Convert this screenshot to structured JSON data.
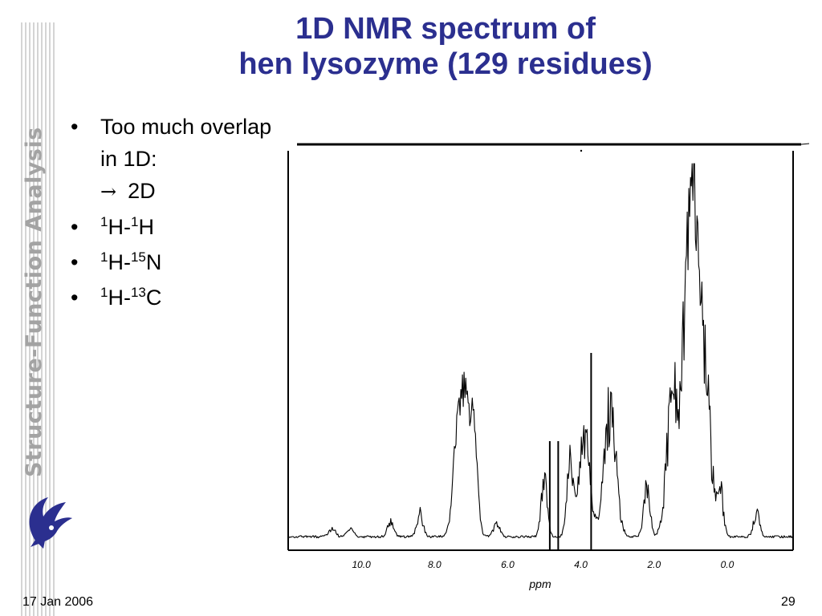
{
  "slide": {
    "title_line1": "1D NMR spectrum of",
    "title_line2": "hen lysozyme (129 residues)",
    "sidebar_title": "Structure-Function Analysis",
    "bullets": [
      {
        "text": "Too much overlap in 1D:",
        "arrow": "→",
        "tail": "2D"
      },
      {
        "a": "1",
        "b": "H-",
        "c": "1",
        "d": "H"
      },
      {
        "a": "1",
        "b": "H-",
        "c": "15",
        "d": "N"
      },
      {
        "a": "1",
        "b": "H-",
        "c": "13",
        "d": "C"
      }
    ],
    "bullet_symbol": "•",
    "footer_date": "17 Jan 2006",
    "page_number": "29",
    "logo_icon": "griffin-logo-icon"
  },
  "chart_data": {
    "type": "line",
    "xlabel": "ppm",
    "x_reversed": true,
    "xlim": [
      12.0,
      -1.8
    ],
    "ylim": [
      0,
      1
    ],
    "tick_labels": [
      "10.0",
      "8.0",
      "6.0",
      "4.0",
      "2.0",
      "0.0"
    ],
    "tick_values": [
      10,
      8,
      6,
      4,
      2,
      0
    ],
    "colors": {
      "line": "#000000",
      "title": "#2b2f8f"
    },
    "features": [
      {
        "ppm": 10.8,
        "height": 0.03
      },
      {
        "ppm": 10.3,
        "height": 0.03
      },
      {
        "ppm": 9.2,
        "height": 0.05
      },
      {
        "ppm": 8.4,
        "height": 0.08
      },
      {
        "ppm": 7.3,
        "height": 0.38
      },
      {
        "ppm": 7.1,
        "height": 0.32
      },
      {
        "ppm": 6.9,
        "height": 0.22
      },
      {
        "ppm": 6.3,
        "height": 0.05
      },
      {
        "ppm": 5.0,
        "height": 0.18
      },
      {
        "ppm": 4.3,
        "height": 0.26
      },
      {
        "ppm": 3.9,
        "height": 0.32
      },
      {
        "ppm": 3.2,
        "height": 0.44
      },
      {
        "ppm": 2.2,
        "height": 0.16
      },
      {
        "ppm": 1.5,
        "height": 0.45
      },
      {
        "ppm": 1.1,
        "height": 0.6
      },
      {
        "ppm": 0.9,
        "height": 0.9
      },
      {
        "ppm": 0.6,
        "height": 0.48
      },
      {
        "ppm": 0.2,
        "height": 0.16
      },
      {
        "ppm": -0.8,
        "height": 0.08
      }
    ]
  }
}
